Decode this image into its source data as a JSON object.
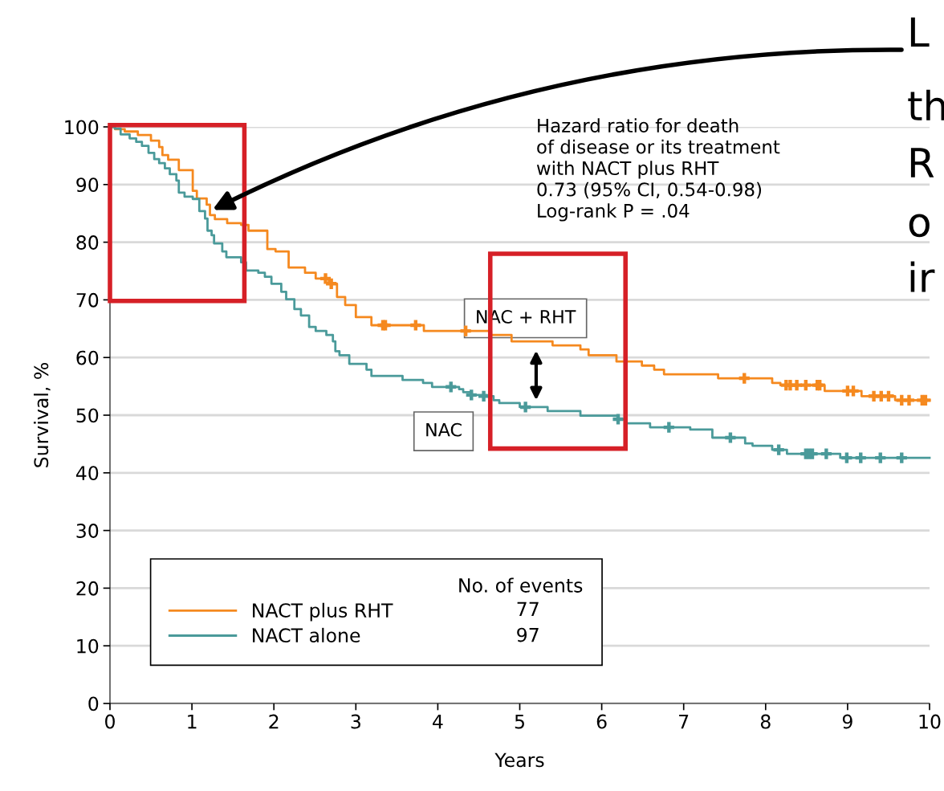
{
  "chart_data": {
    "type": "step",
    "xlabel": "Years",
    "ylabel": "Survival, %",
    "xlim": [
      0,
      10
    ],
    "xticks": [
      0,
      1,
      2,
      3,
      4,
      5,
      6,
      7,
      8,
      9,
      10
    ],
    "ylim": [
      0,
      100
    ],
    "yticks": [
      0,
      10,
      20,
      30,
      40,
      50,
      60,
      70,
      80,
      90,
      100
    ],
    "grid": "y",
    "legend": "bottom left",
    "legend_title": "No. of events",
    "series": [
      {
        "name": "NACT plus RHT",
        "color": "#f5891f",
        "x": [
          0,
          0.06,
          0.18,
          0.34,
          0.5,
          0.6,
          0.64,
          0.71,
          0.84,
          1.01,
          1.06,
          1.18,
          1.22,
          1.28,
          1.43,
          1.6,
          1.69,
          1.92,
          2.02,
          2.18,
          2.38,
          2.51,
          2.67,
          2.77,
          2.87,
          3.0,
          3.19,
          3.83,
          4.65,
          4.9,
          5.4,
          5.74,
          5.84,
          6.18,
          6.49,
          6.64,
          6.76,
          7.42,
          8.08,
          8.18,
          8.72,
          9.17,
          9.58,
          10
        ],
        "values": [
          100,
          99.6,
          99.2,
          98.6,
          97.6,
          96.5,
          95.1,
          94.3,
          92.5,
          88.9,
          87.6,
          86.5,
          84.7,
          84.0,
          83.3,
          83.0,
          82.0,
          78.8,
          78.4,
          75.6,
          74.7,
          73.7,
          72.8,
          70.5,
          69.1,
          67.0,
          65.6,
          64.6,
          63.9,
          62.8,
          62.1,
          61.4,
          60.4,
          59.3,
          58.6,
          57.9,
          57.1,
          56.4,
          55.6,
          55.2,
          54.2,
          53.3,
          52.6,
          52.6
        ]
      },
      {
        "name": "NACT alone",
        "color": "#4a9a9a",
        "x": [
          0,
          0.06,
          0.13,
          0.24,
          0.32,
          0.39,
          0.47,
          0.54,
          0.6,
          0.67,
          0.73,
          0.81,
          0.84,
          0.91,
          1.01,
          1.09,
          1.16,
          1.19,
          1.24,
          1.27,
          1.37,
          1.42,
          1.6,
          1.66,
          1.81,
          1.89,
          1.97,
          2.09,
          2.15,
          2.25,
          2.33,
          2.43,
          2.51,
          2.64,
          2.72,
          2.75,
          2.8,
          2.92,
          3.13,
          3.19,
          3.57,
          3.82,
          3.93,
          4.26,
          4.31,
          4.41,
          4.6,
          4.68,
          4.75,
          5.0,
          5.34,
          5.74,
          6.2,
          6.3,
          6.59,
          7.08,
          7.35,
          7.75,
          7.84,
          8.08,
          8.26,
          8.91,
          10
        ],
        "values": [
          100,
          99.7,
          98.7,
          98.0,
          97.4,
          96.7,
          95.5,
          94.4,
          93.7,
          92.8,
          91.8,
          90.7,
          88.6,
          87.9,
          87.5,
          85.4,
          84.1,
          82.0,
          81.2,
          79.8,
          78.4,
          77.4,
          76.5,
          75.1,
          74.7,
          74.0,
          72.8,
          71.4,
          70.1,
          68.4,
          67.3,
          65.3,
          64.6,
          63.9,
          62.8,
          61.1,
          60.4,
          58.9,
          57.9,
          56.8,
          56.1,
          55.6,
          54.9,
          54.5,
          54.0,
          53.5,
          53.3,
          52.6,
          52.1,
          51.4,
          50.7,
          49.9,
          49.3,
          48.6,
          47.9,
          47.5,
          46.1,
          45.1,
          44.7,
          44.0,
          43.3,
          42.6,
          42.6
        ]
      },
      {
        "color": "#f5891f",
        "type": "scatter",
        "marker": "cross",
        "x": [
          2.63,
          2.7,
          3.33,
          3.36,
          3.73,
          4.34,
          7.74,
          8.25,
          8.3,
          8.38,
          8.49,
          8.63,
          8.66,
          9.0,
          9.07,
          9.32,
          9.41,
          9.5,
          9.66,
          9.75,
          9.91,
          9.95
        ],
        "values": [
          73.7,
          72.8,
          65.6,
          65.6,
          65.6,
          64.6,
          56.4,
          55.2,
          55.2,
          55.2,
          55.2,
          55.2,
          55.2,
          54.2,
          54.2,
          53.3,
          53.3,
          53.3,
          52.6,
          52.6,
          52.6,
          52.6
        ]
      },
      {
        "color": "#4a9a9a",
        "type": "scatter",
        "marker": "cross",
        "x": [
          4.16,
          4.41,
          4.56,
          5.07,
          6.2,
          6.82,
          7.57,
          8.16,
          8.49,
          8.53,
          8.57,
          8.74,
          8.99,
          9.16,
          9.4,
          9.66
        ],
        "values": [
          54.9,
          53.5,
          53.3,
          51.4,
          49.3,
          47.9,
          46.1,
          44.0,
          43.3,
          43.3,
          43.3,
          43.3,
          42.6,
          42.6,
          42.6,
          42.6
        ]
      }
    ],
    "annotations": [
      "Hazard ratio for death\nof disease or its treatment\nwith NACT plus RHT\n0.73 (95% CI, 0.54-0.98)\nLog-rank P = .04",
      "NAC + RHT",
      "NAC",
      "77",
      "97",
      "L",
      "th",
      "R",
      "o",
      "ir"
    ]
  }
}
